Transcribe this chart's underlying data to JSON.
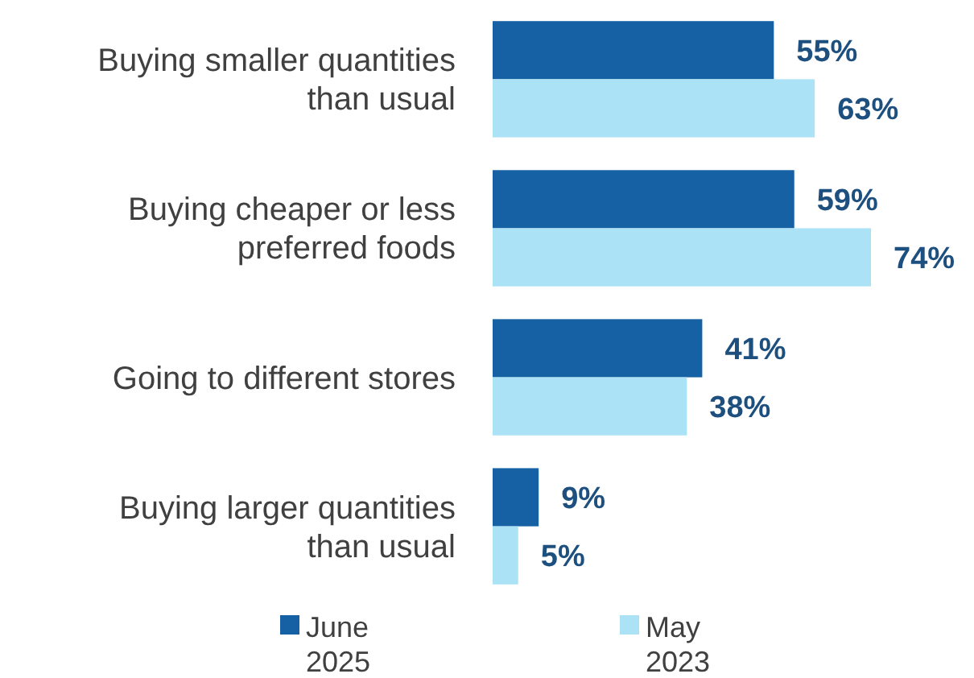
{
  "chart_data": {
    "type": "bar",
    "orientation": "horizontal",
    "categories": [
      "Buying smaller quantities than usual",
      "Buying cheaper or less preferred foods",
      "Going to different stores",
      "Buying larger quantities than usual"
    ],
    "series": [
      {
        "name": "June 2025",
        "color": "#1661a4",
        "values": [
          55,
          59,
          41,
          9
        ],
        "value_labels": [
          "55%",
          "59%",
          "41%",
          "9%"
        ]
      },
      {
        "name": "May 2023",
        "color": "#abe2f5",
        "values": [
          63,
          74,
          38,
          5
        ],
        "value_labels": [
          "63%",
          "74%",
          "38%",
          "5%"
        ]
      }
    ],
    "legend": "bottom"
  }
}
